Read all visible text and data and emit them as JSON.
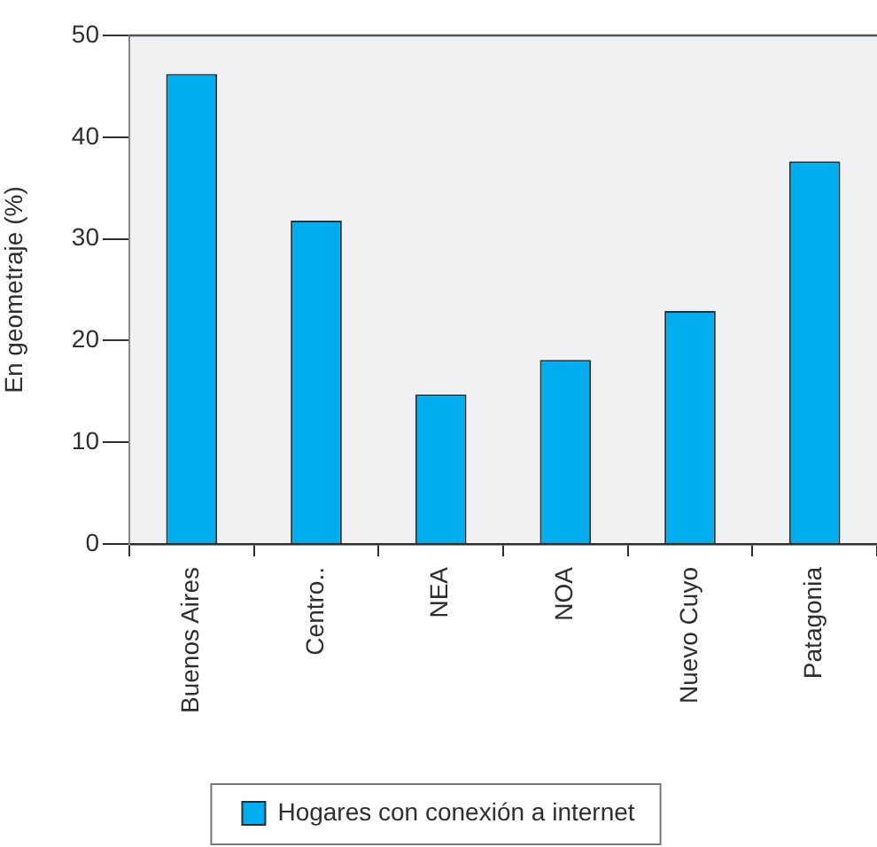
{
  "chart_data": {
    "type": "bar",
    "categories": [
      "Buenos Aires",
      "Centro..",
      "NEA",
      "NOA",
      "Nuevo Cuyo",
      "Patagonia"
    ],
    "ylabel": "En geometraje (%)",
    "series": [
      {
        "name": "Hogares con conexión a internet",
        "color": "#00aeef",
        "values": [
          46.2,
          31.8,
          14.7,
          18.1,
          22.9,
          37.6
        ]
      }
    ],
    "ylim": [
      0,
      50
    ],
    "yticks": [
      0,
      10,
      20,
      30,
      40,
      50
    ],
    "grid": false,
    "legend": "bottom"
  }
}
